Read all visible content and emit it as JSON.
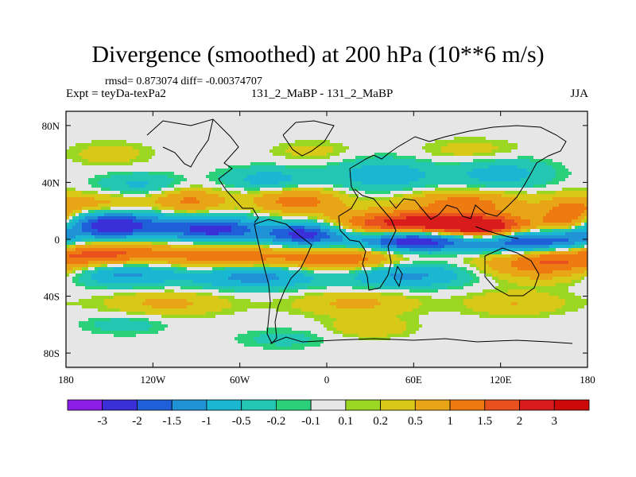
{
  "chart_data": {
    "type": "heatmap",
    "title": "Divergence (smoothed) at 200 hPa (10**6 m/s)",
    "stats_line": "rmsd= 0.873074  diff= -0.00374707",
    "left_subtitle": "Expt = teyDa-texPa2",
    "center_subtitle": "131_2_MaBP - 131_2_MaBP",
    "right_subtitle": "JJA",
    "x_ticks": [
      {
        "value": -180,
        "label": "180"
      },
      {
        "value": -120,
        "label": "120W"
      },
      {
        "value": -60,
        "label": "60W"
      },
      {
        "value": 0,
        "label": "0"
      },
      {
        "value": 60,
        "label": "60E"
      },
      {
        "value": 120,
        "label": "120E"
      },
      {
        "value": 180,
        "label": "180"
      }
    ],
    "y_ticks": [
      {
        "value": 80,
        "label": "80N"
      },
      {
        "value": 40,
        "label": "40N"
      },
      {
        "value": 0,
        "label": "0"
      },
      {
        "value": -40,
        "label": "40S"
      },
      {
        "value": -80,
        "label": "80S"
      }
    ],
    "xlim": [
      -180,
      180
    ],
    "ylim": [
      -90,
      90
    ],
    "colorbar": {
      "labels": [
        "-3",
        "-2",
        "-1.5",
        "-1",
        "-0.5",
        "-0.2",
        "-0.1",
        "0.1",
        "0.2",
        "0.5",
        "1",
        "1.5",
        "2",
        "3"
      ],
      "colors": [
        "#8a1de8",
        "#3a2fd9",
        "#1f60d8",
        "#1f93d6",
        "#19b7d2",
        "#22c6b2",
        "#2ad17a",
        "#e6e6e6",
        "#9ad622",
        "#d8c818",
        "#e8a616",
        "#ee7a12",
        "#e8501e",
        "#d81c1c",
        "#cc0a0a"
      ]
    },
    "field_blobs": [
      {
        "lon": -148,
        "lat": 10,
        "slon": 26,
        "slat": 7,
        "amp": -2.6
      },
      {
        "lon": -78,
        "lat": 7,
        "slon": 22,
        "slat": 6,
        "amp": -2.3
      },
      {
        "lon": -15,
        "lat": 4,
        "slon": 20,
        "slat": 6,
        "amp": -2.4
      },
      {
        "lon": 62,
        "lat": -1,
        "slon": 28,
        "slat": 5,
        "amp": -2.7
      },
      {
        "lon": 138,
        "lat": -1,
        "slon": 26,
        "slat": 6,
        "amp": -2.6
      },
      {
        "lon": 170,
        "lat": 2,
        "slon": 12,
        "slat": 7,
        "amp": -1.4
      },
      {
        "lon": 60,
        "lat": 11,
        "slon": 40,
        "slat": 6,
        "amp": 2.4
      },
      {
        "lon": 112,
        "lat": 7,
        "slon": 22,
        "slat": 6,
        "amp": 2.3
      },
      {
        "lon": 168,
        "lat": 12,
        "slon": 14,
        "slat": 10,
        "amp": 2.0
      },
      {
        "lon": -150,
        "lat": -10,
        "slon": 30,
        "slat": 6,
        "amp": 1.6
      },
      {
        "lon": -70,
        "lat": -12,
        "slon": 28,
        "slat": 6,
        "amp": 1.4
      },
      {
        "lon": 8,
        "lat": -14,
        "slon": 30,
        "slat": 6,
        "amp": 1.5
      },
      {
        "lon": 150,
        "lat": -16,
        "slon": 30,
        "slat": 8,
        "amp": 1.5
      },
      {
        "lon": -140,
        "lat": -24,
        "slon": 25,
        "slat": 6,
        "amp": -1.2
      },
      {
        "lon": -50,
        "lat": -26,
        "slon": 30,
        "slat": 6,
        "amp": -1.3
      },
      {
        "lon": 55,
        "lat": -25,
        "slon": 30,
        "slat": 6,
        "amp": -1.2
      },
      {
        "lon": -95,
        "lat": 27,
        "slon": 18,
        "slat": 6,
        "amp": 1.1
      },
      {
        "lon": -20,
        "lat": 27,
        "slon": 22,
        "slat": 6,
        "amp": 1.3
      },
      {
        "lon": 95,
        "lat": 26,
        "slon": 30,
        "slat": 6,
        "amp": 1.2
      },
      {
        "lon": -155,
        "lat": 24,
        "slon": 22,
        "slat": 6,
        "amp": 0.8
      },
      {
        "lon": -130,
        "lat": 38,
        "slon": 20,
        "slat": 6,
        "amp": -0.6
      },
      {
        "lon": -40,
        "lat": 42,
        "slon": 22,
        "slat": 6,
        "amp": -0.7
      },
      {
        "lon": 40,
        "lat": 45,
        "slon": 25,
        "slat": 8,
        "amp": -0.8
      },
      {
        "lon": 120,
        "lat": 46,
        "slon": 25,
        "slat": 8,
        "amp": -0.7
      },
      {
        "lon": -150,
        "lat": 60,
        "slon": 20,
        "slat": 6,
        "amp": 0.35
      },
      {
        "lon": -10,
        "lat": 62,
        "slon": 20,
        "slat": 5,
        "amp": 0.3
      },
      {
        "lon": 100,
        "lat": 62,
        "slon": 25,
        "slat": 6,
        "amp": 0.35
      },
      {
        "lon": -110,
        "lat": -45,
        "slon": 30,
        "slat": 6,
        "amp": 0.6
      },
      {
        "lon": 20,
        "lat": -45,
        "slon": 30,
        "slat": 6,
        "amp": 0.6
      },
      {
        "lon": 130,
        "lat": -45,
        "slon": 25,
        "slat": 6,
        "amp": 0.5
      },
      {
        "lon": -140,
        "lat": -60,
        "slon": 20,
        "slat": 5,
        "amp": -0.35
      },
      {
        "lon": 30,
        "lat": -62,
        "slon": 20,
        "slat": 5,
        "amp": 0.45
      },
      {
        "lon": -30,
        "lat": -70,
        "slon": 22,
        "slat": 5,
        "amp": -0.3
      }
    ]
  }
}
